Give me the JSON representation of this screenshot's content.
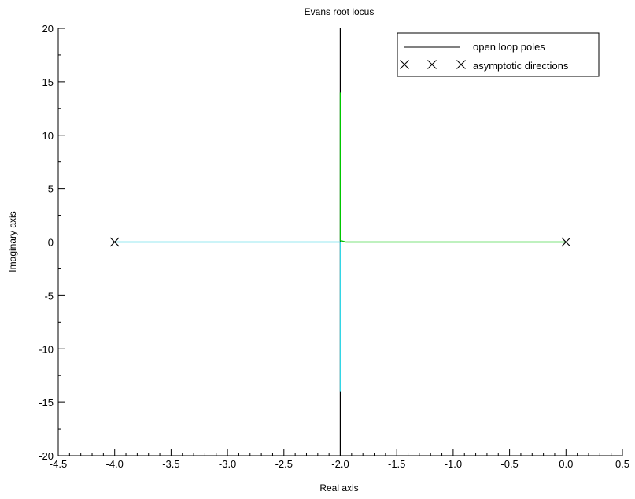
{
  "chart_data": {
    "type": "line",
    "title": "Evans root locus",
    "xlabel": "Real axis",
    "ylabel": "Imaginary axis",
    "xlim": [
      -4.5,
      0.5
    ],
    "ylim": [
      -20,
      20
    ],
    "x_ticks": [
      "-4.5",
      "-4.0",
      "-3.5",
      "-3.0",
      "-2.5",
      "-2.0",
      "-1.5",
      "-1.0",
      "-0.5",
      "0.0",
      "0.5"
    ],
    "y_ticks": [
      "-20",
      "-15",
      "-10",
      "-5",
      "0",
      "5",
      "10",
      "15",
      "20"
    ],
    "grid": false,
    "legend_position": "top-right",
    "legend": [
      {
        "label": "open loop poles",
        "marker": "line"
      },
      {
        "label": "asymptotic directions",
        "marker": "x"
      }
    ],
    "series": [
      {
        "color": "#000000",
        "kind": "line",
        "points": [
          [
            -2.0,
            20
          ],
          [
            -2.0,
            -20
          ]
        ]
      },
      {
        "color": "#00c800",
        "kind": "line",
        "points": [
          [
            0.0,
            0.0
          ],
          [
            -1.95,
            0.0
          ],
          [
            -2.0,
            0.15
          ],
          [
            -2.0,
            14
          ]
        ]
      },
      {
        "color": "#33d6e6",
        "kind": "line",
        "points": [
          [
            -4.0,
            0.0
          ],
          [
            -2.0,
            0.0
          ],
          [
            -2.0,
            -14
          ]
        ]
      },
      {
        "color": "#000000",
        "kind": "x-marker",
        "points": [
          [
            -4.0,
            0.0
          ],
          [
            0.0,
            0.0
          ]
        ]
      }
    ]
  }
}
